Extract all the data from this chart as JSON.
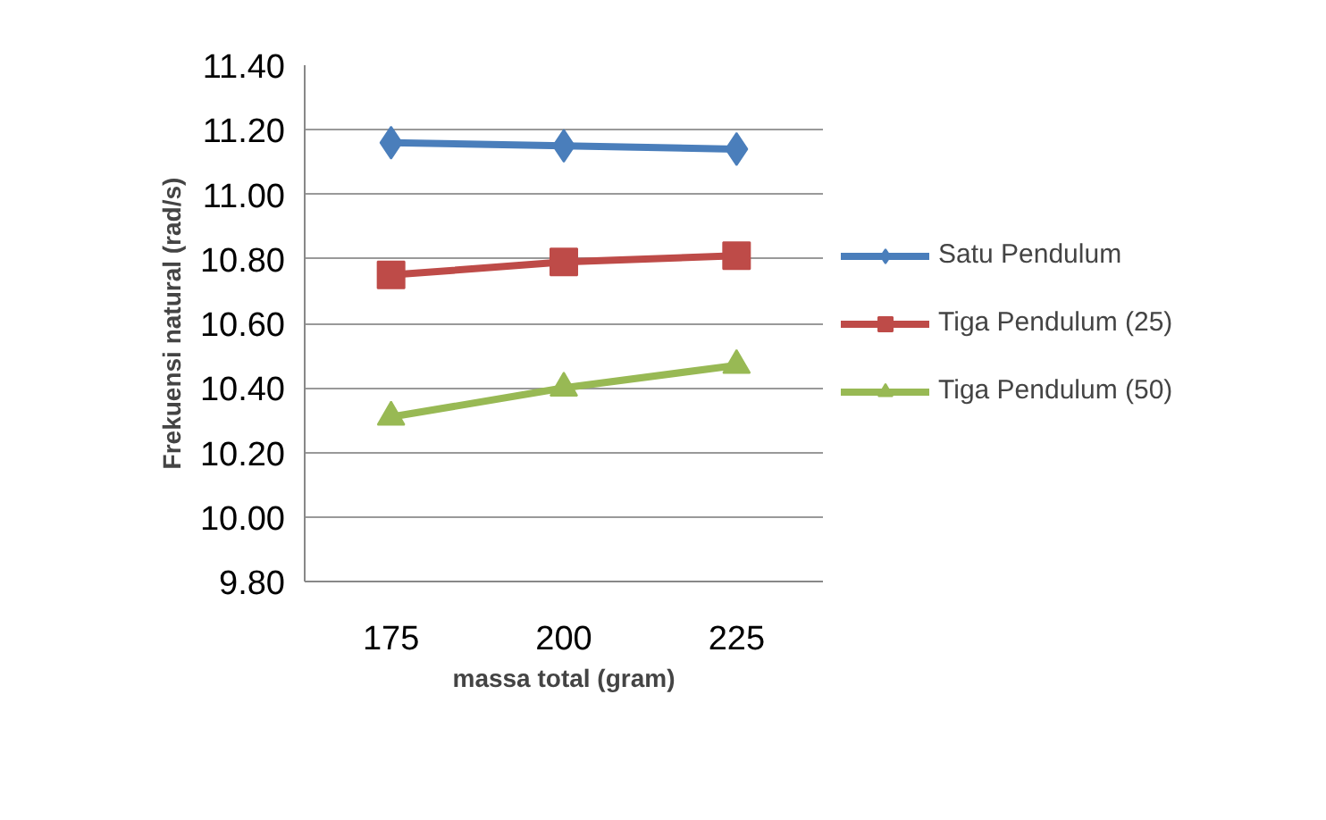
{
  "chart_data": {
    "type": "line",
    "xlabel": "massa total (gram)",
    "ylabel": "Frekuensi natural (rad/s)",
    "categories": [
      "175",
      "200",
      "225"
    ],
    "series": [
      {
        "name": "Satu Pendulum",
        "color": "#4a7ebb",
        "marker": "diamond",
        "values": [
          11.16,
          11.15,
          11.14
        ]
      },
      {
        "name": "Tiga Pendulum (25)",
        "color": "#be4b48",
        "marker": "square",
        "values": [
          10.75,
          10.79,
          10.81
        ]
      },
      {
        "name": "Tiga Pendulum (50)",
        "color": "#98b954",
        "marker": "triangle",
        "values": [
          10.31,
          10.4,
          10.47
        ]
      }
    ],
    "ylim": [
      9.8,
      11.4
    ],
    "yticks": [
      {
        "value": 9.8,
        "label": "9.80"
      },
      {
        "value": 10.0,
        "label": "10.00"
      },
      {
        "value": 10.2,
        "label": "10.20"
      },
      {
        "value": 10.4,
        "label": "10.40"
      },
      {
        "value": 10.6,
        "label": "10.60"
      },
      {
        "value": 10.8,
        "label": "10.80"
      },
      {
        "value": 11.0,
        "label": "11.00"
      },
      {
        "value": 11.2,
        "label": "11.20"
      },
      {
        "value": 11.4,
        "label": "11.40"
      }
    ],
    "grid": "y",
    "legend": "right"
  }
}
